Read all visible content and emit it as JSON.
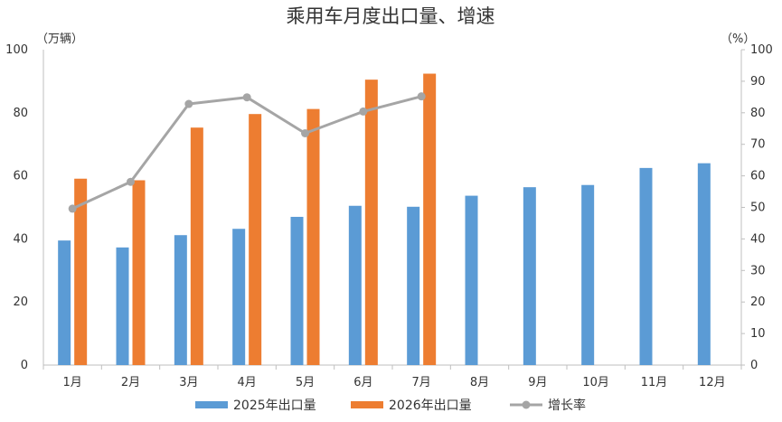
{
  "chart_data": {
    "type": "bar",
    "title": "乘用车月度出口量、增速",
    "y_left_unit": "（万辆）",
    "y_right_unit": "（%）",
    "categories": [
      "1月",
      "2月",
      "3月",
      "4月",
      "5月",
      "6月",
      "7月",
      "8月",
      "9月",
      "10月",
      "11月",
      "12月"
    ],
    "ylim_left": [
      0,
      100
    ],
    "ylim_right": [
      0,
      100
    ],
    "y_left_ticks": [
      "0",
      "20",
      "40",
      "60",
      "80",
      "100"
    ],
    "y_right_ticks": [
      "0",
      "10",
      "20",
      "30",
      "40",
      "50",
      "60",
      "70",
      "80",
      "90",
      "100"
    ],
    "series": [
      {
        "name": "2025年出口量",
        "type": "bar",
        "axis": "left",
        "color": "#5B9BD5",
        "values": [
          39.5,
          37.3,
          41.2,
          43.2,
          47.0,
          50.5,
          50.2,
          53.7,
          56.4,
          57.1,
          62.5,
          64.0
        ]
      },
      {
        "name": "2026年出口量",
        "type": "bar",
        "axis": "left",
        "color": "#ED7D31",
        "values": [
          59.1,
          58.6,
          75.3,
          79.6,
          81.2,
          90.5,
          92.4,
          null,
          null,
          null,
          null,
          null
        ]
      },
      {
        "name": "增长率",
        "type": "line",
        "axis": "right",
        "color": "#A5A5A5",
        "values": [
          49.6,
          58.1,
          82.8,
          84.9,
          73.5,
          80.4,
          85.2,
          null,
          null,
          null,
          null,
          null
        ]
      }
    ],
    "grid": false,
    "legend_position": "bottom"
  }
}
